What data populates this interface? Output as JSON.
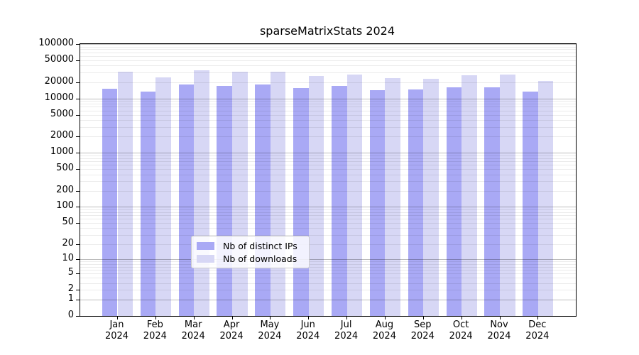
{
  "chart_data": {
    "type": "bar",
    "title": "sparseMatrixStats 2024",
    "categories": [
      "Jan",
      "Feb",
      "Mar",
      "Apr",
      "May",
      "Jun",
      "Jul",
      "Aug",
      "Sep",
      "Oct",
      "Nov",
      "Dec"
    ],
    "year": "2024",
    "series": [
      {
        "name": "Nb of distinct IPs",
        "color": "#a9a9f5",
        "values": [
          14900,
          13500,
          17900,
          16800,
          17900,
          15500,
          16800,
          14300,
          14400,
          16000,
          15900,
          13500
        ]
      },
      {
        "name": "Nb of downloads",
        "color": "#d7d7f5",
        "values": [
          31200,
          24300,
          33100,
          31200,
          30600,
          26100,
          27400,
          23400,
          23200,
          26600,
          27200,
          20900
        ]
      }
    ],
    "yscale": "log(value+1), 0 at baseline",
    "ylim": [
      0,
      100000
    ],
    "yticks": [
      {
        "v": 100000,
        "label": "100000"
      },
      {
        "v": 50000,
        "label": "50000"
      },
      {
        "v": 20000,
        "label": "20000"
      },
      {
        "v": 10000,
        "label": "10000"
      },
      {
        "v": 5000,
        "label": "5000"
      },
      {
        "v": 2000,
        "label": "2000"
      },
      {
        "v": 1000,
        "label": "1000"
      },
      {
        "v": 500,
        "label": "500"
      },
      {
        "v": 200,
        "label": "200"
      },
      {
        "v": 100,
        "label": "100"
      },
      {
        "v": 50,
        "label": "50"
      },
      {
        "v": 20,
        "label": "20"
      },
      {
        "v": 10,
        "label": "10"
      },
      {
        "v": 5,
        "label": "5"
      },
      {
        "v": 2,
        "label": "2"
      },
      {
        "v": 1,
        "label": "1"
      },
      {
        "v": 0,
        "label": "0"
      }
    ],
    "grid": true,
    "legend_position": "lower center"
  },
  "legend": {
    "items": [
      {
        "label": "Nb of distinct IPs",
        "color": "#a9a9f5"
      },
      {
        "label": "Nb of downloads",
        "color": "#d7d7f5"
      }
    ]
  }
}
